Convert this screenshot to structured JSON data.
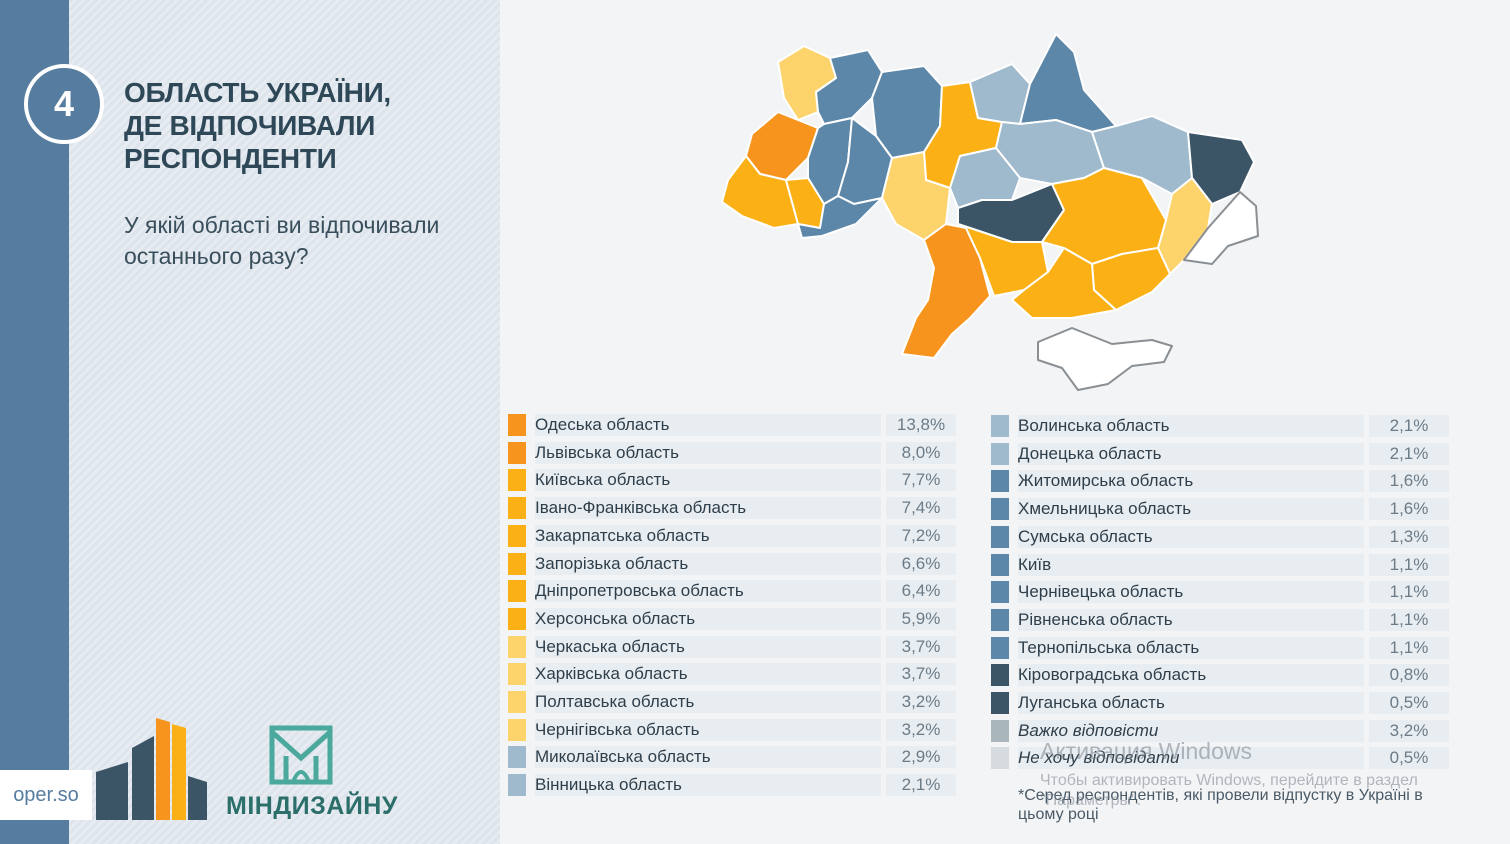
{
  "slide_number": "4",
  "title_lines": [
    "ОБЛАСТЬ УКРАЇНИ,",
    "ДЕ ВІДПОЧИВАЛИ",
    "РЕСПОНДЕНТИ"
  ],
  "question_lines": [
    "У якій області ви відпочивали",
    "останнього разу?"
  ],
  "brand": {
    "site": "oper.so",
    "partner": "МІНДИЗАЙНУ"
  },
  "colors": {
    "orange_dark": "#f7941d",
    "orange": "#fbb116",
    "yellow_light": "#fdd36b",
    "blue_light": "#9fb9cd",
    "blue": "#5d87a8",
    "blue_dark": "#3b5566",
    "gray": "#a9b7bd",
    "gray_light": "#d5dbdf"
  },
  "chart_data": {
    "type": "table",
    "columns": [
      "region",
      "share"
    ],
    "rows": [
      {
        "label": "Одеська область",
        "value": "13,8%",
        "color": "#f7941d"
      },
      {
        "label": "Львівська область",
        "value": "8,0%",
        "color": "#f7941d"
      },
      {
        "label": "Київська область",
        "value": "7,7%",
        "color": "#fbb116"
      },
      {
        "label": "Івано-Франківська область",
        "value": "7,4%",
        "color": "#fbb116"
      },
      {
        "label": "Закарпатська область",
        "value": "7,2%",
        "color": "#fbb116"
      },
      {
        "label": "Запорізька область",
        "value": "6,6%",
        "color": "#fbb116"
      },
      {
        "label": "Дніпропетровська область",
        "value": "6,4%",
        "color": "#fbb116"
      },
      {
        "label": "Херсонська область",
        "value": "5,9%",
        "color": "#fbb116"
      },
      {
        "label": "Черкаська область",
        "value": "3,7%",
        "color": "#fdd36b"
      },
      {
        "label": "Харківська область",
        "value": "3,7%",
        "color": "#fdd36b"
      },
      {
        "label": "Полтавська область",
        "value": "3,2%",
        "color": "#fdd36b"
      },
      {
        "label": "Чернігівська область",
        "value": "3,2%",
        "color": "#fdd36b"
      },
      {
        "label": "Миколаївська область",
        "value": "2,9%",
        "color": "#9fb9cd"
      },
      {
        "label": "Вінницька область",
        "value": "2,1%",
        "color": "#9fb9cd"
      },
      {
        "label": "Волинська область",
        "value": "2,1%",
        "color": "#9fb9cd"
      },
      {
        "label": "Донецька область",
        "value": "2,1%",
        "color": "#9fb9cd"
      },
      {
        "label": "Житомирська область",
        "value": "1,6%",
        "color": "#5d87a8"
      },
      {
        "label": "Хмельницька область",
        "value": "1,6%",
        "color": "#5d87a8"
      },
      {
        "label": "Сумська область",
        "value": "1,3%",
        "color": "#5d87a8"
      },
      {
        "label": "Київ",
        "value": "1,1%",
        "color": "#5d87a8"
      },
      {
        "label": "Чернівецька область",
        "value": "1,1%",
        "color": "#5d87a8"
      },
      {
        "label": "Рівненська область",
        "value": "1,1%",
        "color": "#5d87a8"
      },
      {
        "label": "Тернопільська область",
        "value": "1,1%",
        "color": "#5d87a8"
      },
      {
        "label": "Кіровоградська область",
        "value": "0,8%",
        "color": "#3b5566"
      },
      {
        "label": "Луганська область",
        "value": "0,5%",
        "color": "#3b5566"
      },
      {
        "label": "Важко відповісти",
        "value": "3,2%",
        "color": "#a9b7bd",
        "italic": true
      },
      {
        "label": "Не хочу відповідати",
        "value": "0,5%",
        "color": "#d5dbdf",
        "italic": true
      }
    ],
    "note": "*Серед респондентів, які провели відпустку в Україні в цьому році"
  },
  "watermark": {
    "title": "Активация Windows",
    "text": "Чтобы активировать Windows, перейдите в раздел \"Параметры\"."
  }
}
